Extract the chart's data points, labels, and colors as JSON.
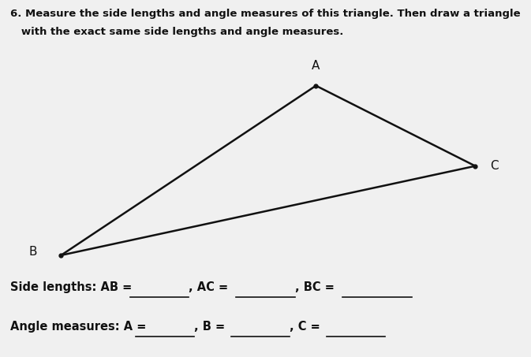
{
  "title_line1": "6. Measure the side lengths and angle measures of this triangle. Then draw a triangle",
  "title_line2": "   with the exact same side lengths and angle measures.",
  "bg_color": "#f0f0f0",
  "triangle": {
    "A": [
      0.595,
      0.76
    ],
    "B": [
      0.115,
      0.285
    ],
    "C": [
      0.895,
      0.535
    ]
  },
  "vertex_label_offsets": {
    "A": [
      0.0,
      0.04
    ],
    "B": [
      -0.045,
      0.01
    ],
    "C": [
      0.028,
      0.0
    ]
  },
  "line_color": "#111111",
  "line_width": 1.8,
  "label_fontsize": 11,
  "title_fontsize": 9.5,
  "text_fontsize": 10.5,
  "underline_color": "#111111",
  "underline_lw": 1.2
}
